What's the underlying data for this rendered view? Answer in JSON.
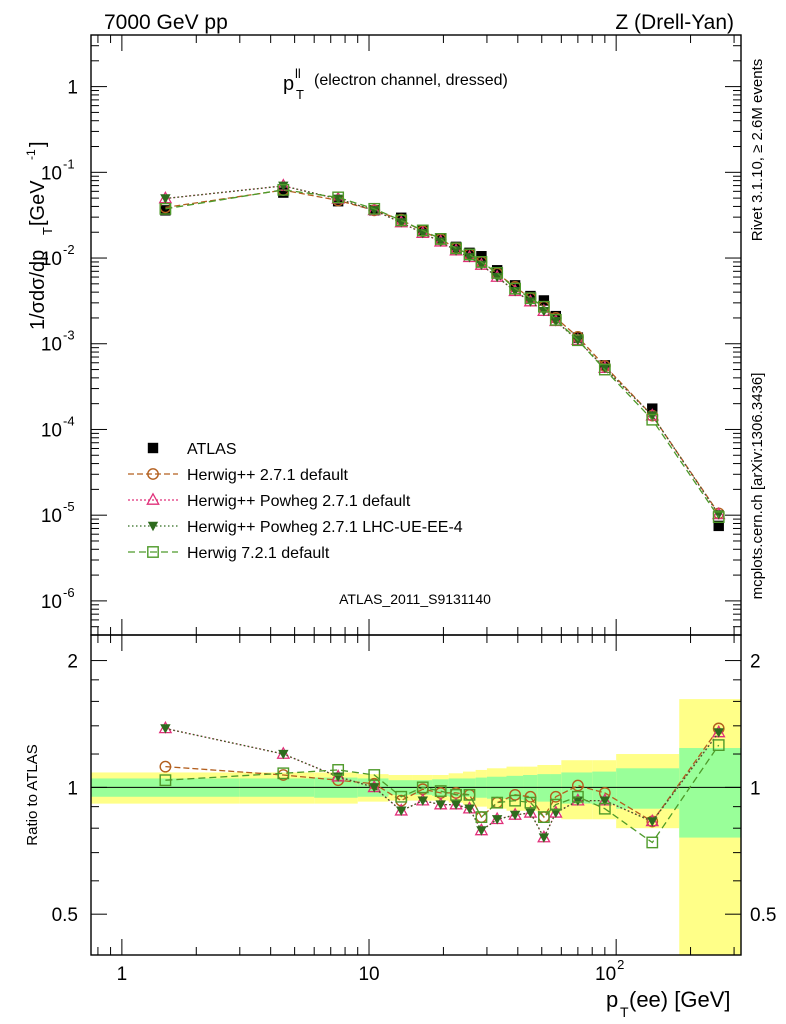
{
  "header": {
    "left": "7000 GeV pp",
    "right": "Z (Drell-Yan)"
  },
  "side_labels": {
    "rivet": "Rivet 3.1.10, ≥ 2.6M events",
    "mcplots": "mcplots.cern.ch [arXiv:1306.3436]"
  },
  "chart_data": [
    {
      "type": "scatter",
      "title": "p_T^ll (electron channel, dressed)",
      "title_main": "p",
      "title_sup": "ll",
      "title_sub": "T",
      "title_rest": "(electron channel, dressed)",
      "ylabel": "1/σdσ/dp_T [GeV^-1]",
      "ylabel_parts": {
        "a": "1/σdσ/dp",
        "sub": "T",
        "b": " [GeV",
        "sup": "-1",
        "c": "]"
      },
      "xscale": "log",
      "yscale": "log",
      "xlim": [
        0.75,
        320
      ],
      "ylim": [
        4e-07,
        4
      ],
      "ytick_labels": [
        {
          "v": 1e-06,
          "base": "10",
          "exp": "-6"
        },
        {
          "v": 1e-05,
          "base": "10",
          "exp": "-5"
        },
        {
          "v": 0.0001,
          "base": "10",
          "exp": "-4"
        },
        {
          "v": 0.001,
          "base": "10",
          "exp": "-3"
        },
        {
          "v": 0.01,
          "base": "10",
          "exp": "-2"
        },
        {
          "v": 0.1,
          "base": "10",
          "exp": "-1"
        },
        {
          "v": 1,
          "base": "1",
          "exp": ""
        }
      ],
      "watermark": "ATLAS_2011_S9131140",
      "legend_position": "bottom-left",
      "x": [
        1.5,
        4.5,
        7.5,
        10.5,
        13.5,
        16.5,
        19.5,
        22.5,
        25.5,
        28.5,
        33,
        39,
        45,
        51,
        57,
        70,
        90,
        140,
        260
      ],
      "series": [
        {
          "name": "ATLAS",
          "key": "atlas",
          "color": "#000000",
          "marker": "filled-square",
          "values": [
            0.036,
            0.058,
            0.046,
            0.036,
            0.0295,
            0.021,
            0.017,
            0.0135,
            0.0115,
            0.0105,
            0.0072,
            0.0048,
            0.0036,
            0.0032,
            0.0021,
            0.00118,
            0.00056,
            0.000175,
            7.5e-06
          ]
        },
        {
          "name": "Herwig++ 2.7.1 default",
          "key": "h271",
          "color": "#b35f1e",
          "marker": "open-circle",
          "dash": "6,3",
          "values": [
            0.039,
            0.062,
            0.047,
            0.036,
            0.028,
            0.0205,
            0.0165,
            0.013,
            0.011,
            0.009,
            0.0066,
            0.0046,
            0.0034,
            0.0027,
            0.002,
            0.0012,
            0.00055,
            0.000145,
            1.05e-05
          ]
        },
        {
          "name": "Herwig++ Powheg 2.7.1 default",
          "key": "hpw",
          "color": "#e0307a",
          "marker": "open-triangle",
          "dash": "2,2",
          "values": [
            0.0495,
            0.0695,
            0.049,
            0.036,
            0.026,
            0.0195,
            0.0155,
            0.0122,
            0.0102,
            0.0083,
            0.006,
            0.0041,
            0.0031,
            0.0024,
            0.00183,
            0.0011,
            0.00052,
            0.000145,
            1.02e-05
          ]
        },
        {
          "name": "Herwig++ Powheg 2.7.1 LHC-UE-EE-4",
          "key": "hpwue",
          "color": "#2e6b1e",
          "marker": "filled-triangle-down",
          "dash": "1.5,2.5",
          "values": [
            0.0495,
            0.0695,
            0.049,
            0.036,
            0.026,
            0.0195,
            0.0155,
            0.0122,
            0.0102,
            0.0083,
            0.006,
            0.0041,
            0.0031,
            0.0024,
            0.00183,
            0.0011,
            0.00052,
            0.000145,
            1.02e-05
          ]
        },
        {
          "name": "Herwig 7.2.1 default",
          "key": "h721",
          "color": "#4e9a2a",
          "marker": "open-square",
          "dash": "7,4",
          "values": [
            0.0375,
            0.0625,
            0.051,
            0.0375,
            0.0275,
            0.021,
            0.0167,
            0.013,
            0.011,
            0.009,
            0.0067,
            0.0044,
            0.0034,
            0.0027,
            0.0019,
            0.0011,
            0.0005,
            0.00013,
            9.5e-06
          ]
        }
      ]
    },
    {
      "type": "scatter",
      "title": "",
      "ylabel": "Ratio to ATLAS",
      "xlabel": "p_T(ee) [GeV]",
      "xlabel_parts": {
        "a": "p",
        "sub": "T",
        "b": "(ee) [GeV]"
      },
      "xscale": "log",
      "xlim": [
        0.75,
        320
      ],
      "ylim": [
        0.4,
        2.3
      ],
      "ytick_labels": [
        "0.5",
        "1",
        "2"
      ],
      "xtick_labels": [
        {
          "v": 1,
          "base": "1",
          "exp": ""
        },
        {
          "v": 10,
          "base": "10",
          "exp": ""
        },
        {
          "v": 100,
          "base": "10",
          "exp": "2"
        }
      ],
      "reference_line": 1,
      "bin_edges": [
        0.75,
        3,
        6,
        9,
        12,
        15,
        18,
        21,
        24,
        27,
        30,
        36,
        42,
        48,
        54,
        60,
        80,
        100,
        180,
        320
      ],
      "band_inner_half": [
        0.05,
        0.05,
        0.055,
        0.05,
        0.04,
        0.04,
        0.045,
        0.05,
        0.05,
        0.055,
        0.06,
        0.065,
        0.07,
        0.075,
        0.075,
        0.085,
        0.09,
        0.11,
        0.24
      ],
      "band_outer_half": [
        0.085,
        0.085,
        0.085,
        0.075,
        0.07,
        0.07,
        0.07,
        0.08,
        0.09,
        0.1,
        0.11,
        0.12,
        0.12,
        0.13,
        0.13,
        0.16,
        0.16,
        0.2,
        0.62
      ],
      "band_colors": {
        "inner": "#99ff99",
        "outer": "#ffff88"
      },
      "x": [
        1.5,
        4.5,
        7.5,
        10.5,
        13.5,
        16.5,
        19.5,
        22.5,
        25.5,
        28.5,
        33,
        39,
        45,
        51,
        57,
        70,
        90,
        140,
        260
      ],
      "series": [
        {
          "key": "h271",
          "color": "#b35f1e",
          "marker": "open-circle",
          "dash": "6,3",
          "values": [
            1.12,
            1.07,
            1.04,
            1.02,
            0.93,
            0.99,
            0.97,
            0.97,
            0.96,
            0.85,
            0.92,
            0.96,
            0.95,
            0.85,
            0.95,
            1.01,
            0.97,
            0.83,
            1.38
          ]
        },
        {
          "key": "hpw",
          "color": "#e0307a",
          "marker": "open-triangle",
          "dash": "2,2",
          "values": [
            1.38,
            1.2,
            1.06,
            1.0,
            0.88,
            0.93,
            0.91,
            0.91,
            0.89,
            0.79,
            0.84,
            0.86,
            0.87,
            0.76,
            0.87,
            0.93,
            0.93,
            0.83,
            1.35
          ]
        },
        {
          "key": "hpwue",
          "color": "#2e6b1e",
          "marker": "filled-triangle-down",
          "dash": "1.5,2.5",
          "values": [
            1.38,
            1.2,
            1.06,
            1.0,
            0.88,
            0.93,
            0.91,
            0.91,
            0.89,
            0.79,
            0.84,
            0.86,
            0.87,
            0.76,
            0.87,
            0.93,
            0.93,
            0.83,
            1.35
          ]
        },
        {
          "key": "h721",
          "color": "#4e9a2a",
          "marker": "open-square",
          "dash": "7,4",
          "values": [
            1.04,
            1.08,
            1.1,
            1.07,
            0.95,
            1.0,
            0.98,
            0.96,
            0.96,
            0.85,
            0.92,
            0.93,
            0.92,
            0.85,
            0.91,
            0.95,
            0.89,
            0.74,
            1.26
          ]
        }
      ]
    }
  ]
}
